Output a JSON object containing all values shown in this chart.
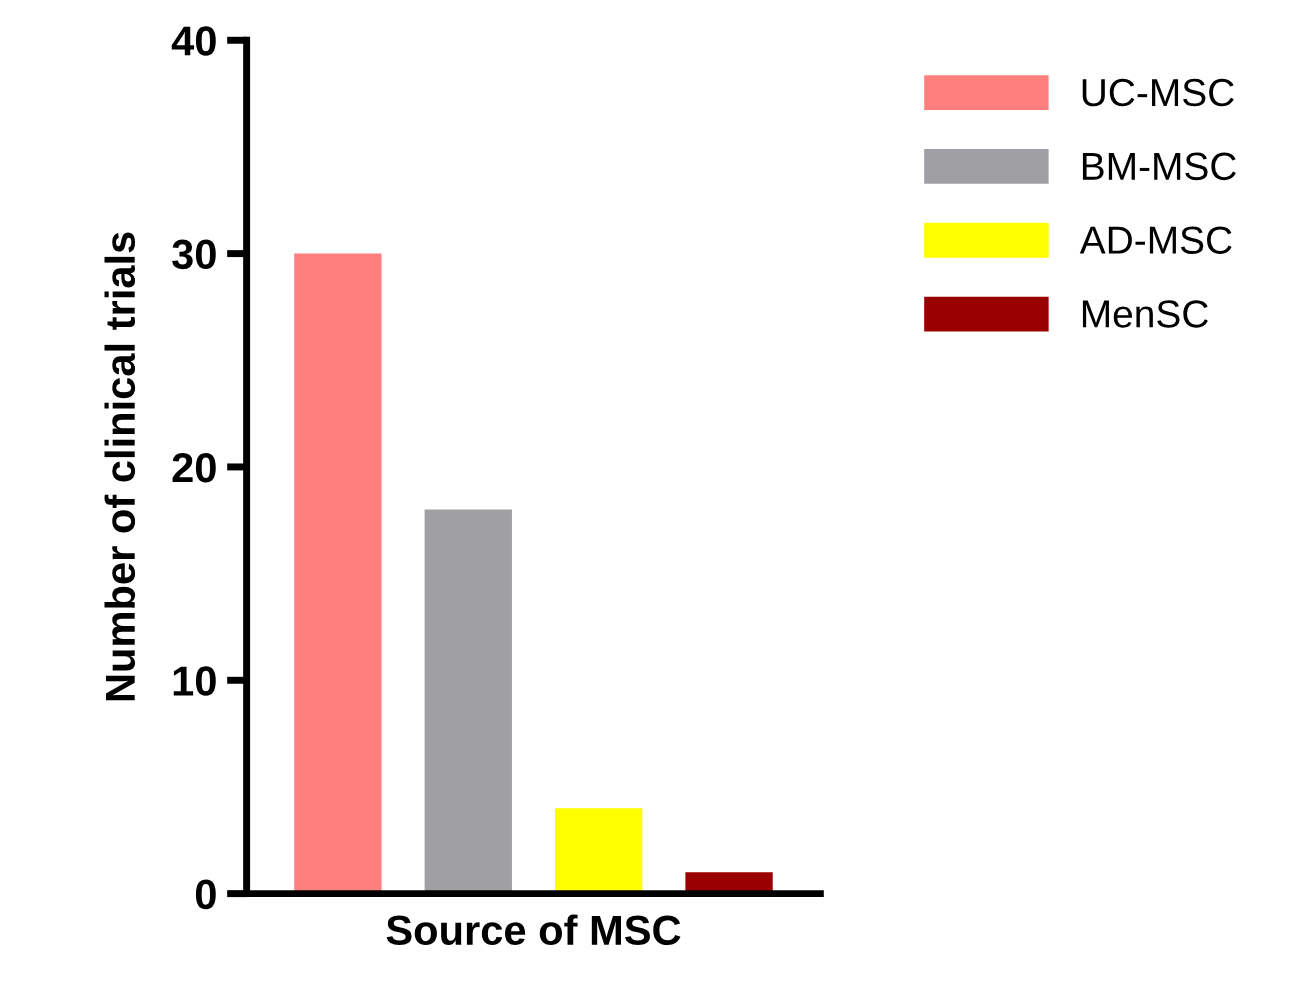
{
  "chart_data": {
    "type": "bar",
    "xlabel": "Source of MSC",
    "ylabel": "Number of clinical trials",
    "categories": [
      null,
      null,
      null,
      null
    ],
    "series": [
      {
        "name": "UC-MSC",
        "color": "#ff7f7f",
        "values": [
          30,
          null,
          null,
          null
        ]
      },
      {
        "name": "BM-MSC",
        "color": "#a0a0a4",
        "values": [
          null,
          18,
          null,
          null
        ]
      },
      {
        "name": "AD-MSC",
        "color": "#ffff00",
        "values": [
          null,
          null,
          4,
          null
        ]
      },
      {
        "name": "MenSC",
        "color": "#9b0000",
        "values": [
          null,
          null,
          null,
          1
        ]
      }
    ],
    "ylim": [
      0,
      40
    ],
    "yticks": [
      0,
      10,
      20,
      30,
      40
    ],
    "grid": false,
    "legend": "top right"
  }
}
